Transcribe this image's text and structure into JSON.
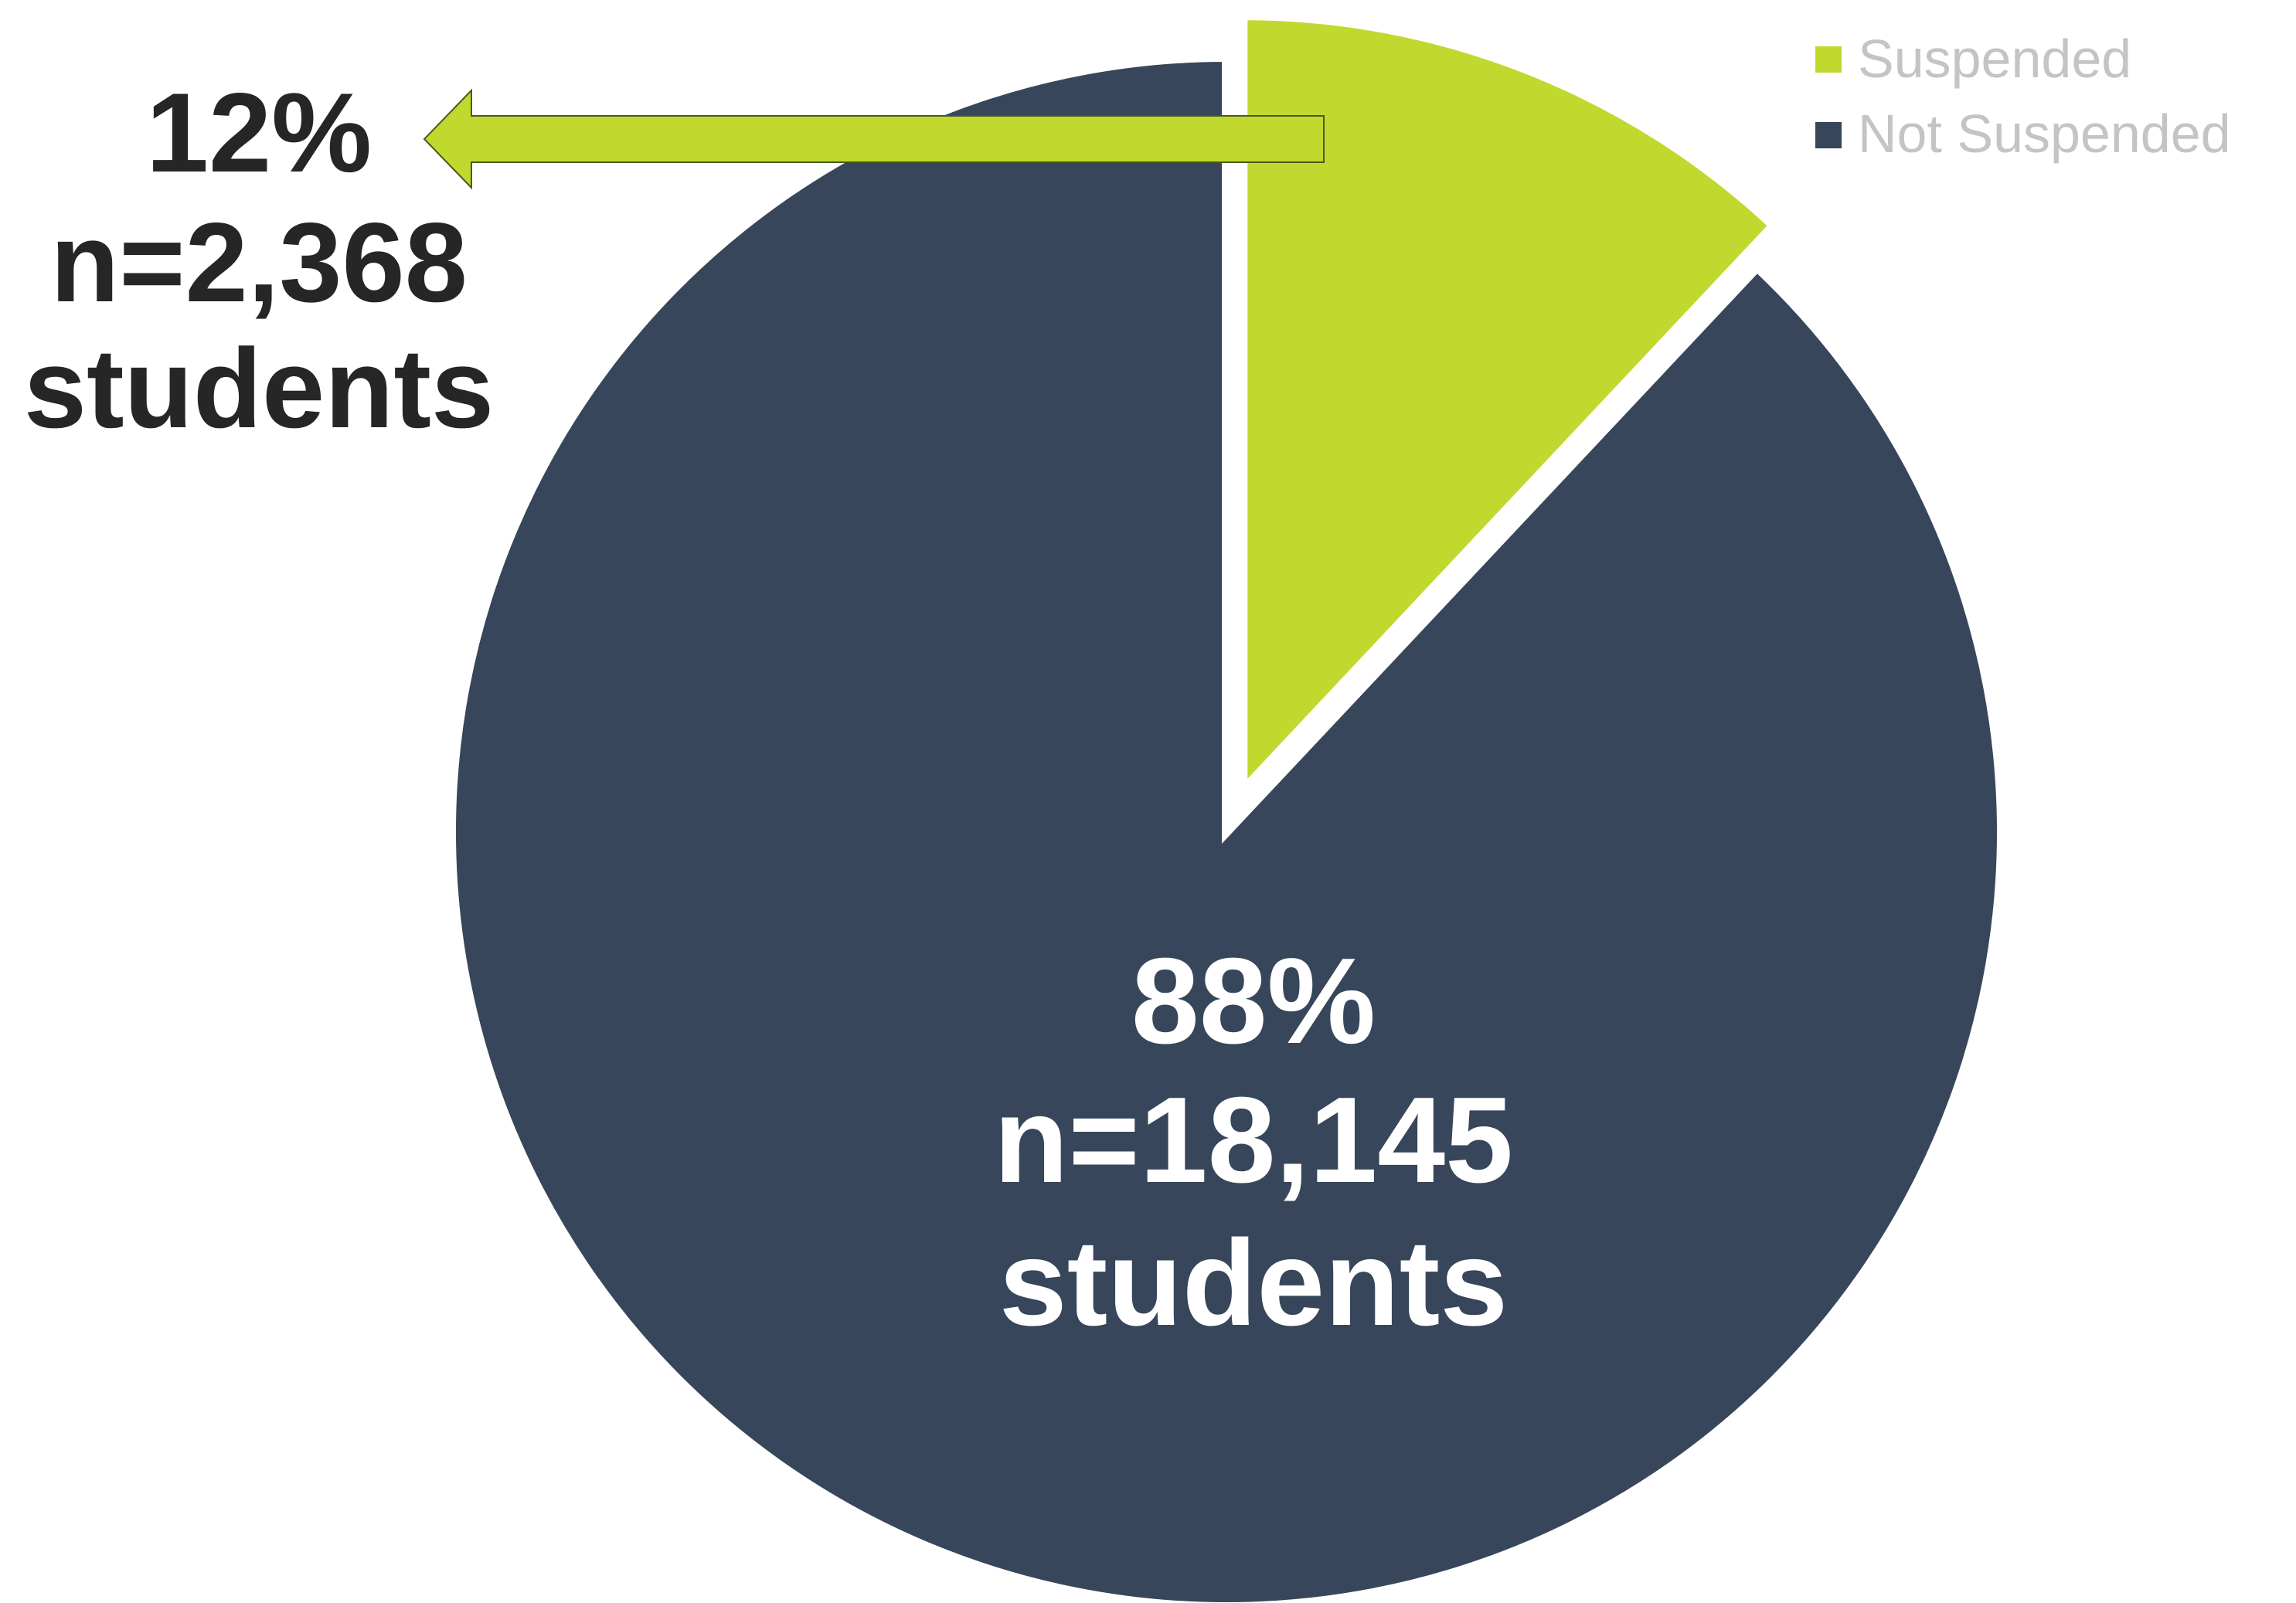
{
  "chart_data": {
    "type": "pie",
    "title": "",
    "slices": [
      {
        "name": "Suspended",
        "percent": 12,
        "percent_label": "12%",
        "count_label": "n=2,368",
        "unit_label": "students",
        "color": "#c1d82f",
        "exploded": true
      },
      {
        "name": "Not Suspended",
        "percent": 88,
        "percent_label": "88%",
        "count_label": "n=18,145",
        "unit_label": "students",
        "color": "#37465a",
        "exploded": false
      }
    ],
    "legend": {
      "position": "top-right",
      "items": [
        "Suspended",
        "Not Suspended"
      ]
    },
    "label_colors": {
      "suspended": "#262626",
      "not_suspended": "#ffffff"
    },
    "callout_arrow_color": "#c1d82f"
  }
}
